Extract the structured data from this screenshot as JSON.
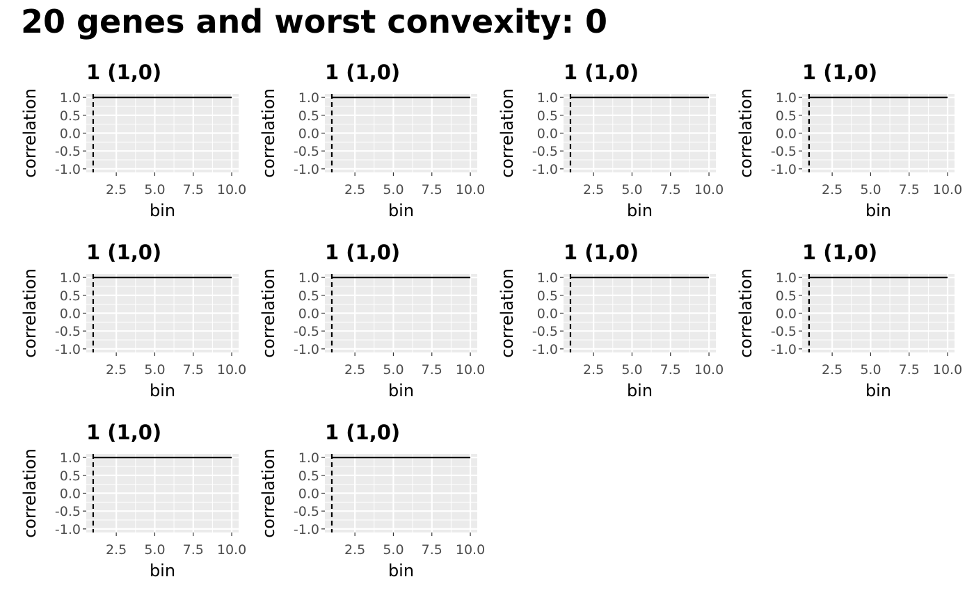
{
  "title": "20 genes and worst convexity: 0",
  "colors": {
    "panel_bg": "#ebebeb",
    "grid_line": "#ffffff",
    "line": "#000000",
    "tick_label": "#4d4d4d",
    "text": "#000000"
  },
  "chart_data": [
    {
      "type": "line",
      "title": "1 (1,0)",
      "xlabel": "bin",
      "ylabel": "correlation",
      "xlim": [
        0.55,
        10.45
      ],
      "ylim": [
        -1.1,
        1.1
      ],
      "xticks": [
        2.5,
        5.0,
        7.5,
        10.0
      ],
      "xtick_labels": [
        "2.5",
        "5.0",
        "7.5",
        "10.0"
      ],
      "yticks": [
        1.0,
        0.5,
        0.0,
        -0.5,
        -1.0
      ],
      "ytick_labels": [
        "1.0",
        "0.5",
        "0.0",
        "-0.5",
        "-1.0"
      ],
      "x": [
        1,
        2,
        3,
        4,
        5,
        6,
        7,
        8,
        9,
        10
      ],
      "y": [
        1,
        1,
        1,
        1,
        1,
        1,
        1,
        1,
        1,
        1
      ],
      "vline_dashed": 1,
      "grid": true
    },
    {
      "type": "line",
      "title": "1 (1,0)",
      "xlabel": "bin",
      "ylabel": "correlation",
      "xlim": [
        0.55,
        10.45
      ],
      "ylim": [
        -1.1,
        1.1
      ],
      "xticks": [
        2.5,
        5.0,
        7.5,
        10.0
      ],
      "xtick_labels": [
        "2.5",
        "5.0",
        "7.5",
        "10.0"
      ],
      "yticks": [
        1.0,
        0.5,
        0.0,
        -0.5,
        -1.0
      ],
      "ytick_labels": [
        "1.0",
        "0.5",
        "0.0",
        "-0.5",
        "-1.0"
      ],
      "x": [
        1,
        2,
        3,
        4,
        5,
        6,
        7,
        8,
        9,
        10
      ],
      "y": [
        1,
        1,
        1,
        1,
        1,
        1,
        1,
        1,
        1,
        1
      ],
      "vline_dashed": 1,
      "grid": true
    },
    {
      "type": "line",
      "title": "1 (1,0)",
      "xlabel": "bin",
      "ylabel": "correlation",
      "xlim": [
        0.55,
        10.45
      ],
      "ylim": [
        -1.1,
        1.1
      ],
      "xticks": [
        2.5,
        5.0,
        7.5,
        10.0
      ],
      "xtick_labels": [
        "2.5",
        "5.0",
        "7.5",
        "10.0"
      ],
      "yticks": [
        1.0,
        0.5,
        0.0,
        -0.5,
        -1.0
      ],
      "ytick_labels": [
        "1.0",
        "0.5",
        "0.0",
        "-0.5",
        "-1.0"
      ],
      "x": [
        1,
        2,
        3,
        4,
        5,
        6,
        7,
        8,
        9,
        10
      ],
      "y": [
        1,
        1,
        1,
        1,
        1,
        1,
        1,
        1,
        1,
        1
      ],
      "vline_dashed": 1,
      "grid": true
    },
    {
      "type": "line",
      "title": "1 (1,0)",
      "xlabel": "bin",
      "ylabel": "correlation",
      "xlim": [
        0.55,
        10.45
      ],
      "ylim": [
        -1.1,
        1.1
      ],
      "xticks": [
        2.5,
        5.0,
        7.5,
        10.0
      ],
      "xtick_labels": [
        "2.5",
        "5.0",
        "7.5",
        "10.0"
      ],
      "yticks": [
        1.0,
        0.5,
        0.0,
        -0.5,
        -1.0
      ],
      "ytick_labels": [
        "1.0",
        "0.5",
        "0.0",
        "-0.5",
        "-1.0"
      ],
      "x": [
        1,
        2,
        3,
        4,
        5,
        6,
        7,
        8,
        9,
        10
      ],
      "y": [
        1,
        1,
        1,
        1,
        1,
        1,
        1,
        1,
        1,
        1
      ],
      "vline_dashed": 1,
      "grid": true
    },
    {
      "type": "line",
      "title": "1 (1,0)",
      "xlabel": "bin",
      "ylabel": "correlation",
      "xlim": [
        0.55,
        10.45
      ],
      "ylim": [
        -1.1,
        1.1
      ],
      "xticks": [
        2.5,
        5.0,
        7.5,
        10.0
      ],
      "xtick_labels": [
        "2.5",
        "5.0",
        "7.5",
        "10.0"
      ],
      "yticks": [
        1.0,
        0.5,
        0.0,
        -0.5,
        -1.0
      ],
      "ytick_labels": [
        "1.0",
        "0.5",
        "0.0",
        "-0.5",
        "-1.0"
      ],
      "x": [
        1,
        2,
        3,
        4,
        5,
        6,
        7,
        8,
        9,
        10
      ],
      "y": [
        1,
        1,
        1,
        1,
        1,
        1,
        1,
        1,
        1,
        1
      ],
      "vline_dashed": 1,
      "grid": true
    },
    {
      "type": "line",
      "title": "1 (1,0)",
      "xlabel": "bin",
      "ylabel": "correlation",
      "xlim": [
        0.55,
        10.45
      ],
      "ylim": [
        -1.1,
        1.1
      ],
      "xticks": [
        2.5,
        5.0,
        7.5,
        10.0
      ],
      "xtick_labels": [
        "2.5",
        "5.0",
        "7.5",
        "10.0"
      ],
      "yticks": [
        1.0,
        0.5,
        0.0,
        -0.5,
        -1.0
      ],
      "ytick_labels": [
        "1.0",
        "0.5",
        "0.0",
        "-0.5",
        "-1.0"
      ],
      "x": [
        1,
        2,
        3,
        4,
        5,
        6,
        7,
        8,
        9,
        10
      ],
      "y": [
        1,
        1,
        1,
        1,
        1,
        1,
        1,
        1,
        1,
        1
      ],
      "vline_dashed": 1,
      "grid": true
    },
    {
      "type": "line",
      "title": "1 (1,0)",
      "xlabel": "bin",
      "ylabel": "correlation",
      "xlim": [
        0.55,
        10.45
      ],
      "ylim": [
        -1.1,
        1.1
      ],
      "xticks": [
        2.5,
        5.0,
        7.5,
        10.0
      ],
      "xtick_labels": [
        "2.5",
        "5.0",
        "7.5",
        "10.0"
      ],
      "yticks": [
        1.0,
        0.5,
        0.0,
        -0.5,
        -1.0
      ],
      "ytick_labels": [
        "1.0",
        "0.5",
        "0.0",
        "-0.5",
        "-1.0"
      ],
      "x": [
        1,
        2,
        3,
        4,
        5,
        6,
        7,
        8,
        9,
        10
      ],
      "y": [
        1,
        1,
        1,
        1,
        1,
        1,
        1,
        1,
        1,
        1
      ],
      "vline_dashed": 1,
      "grid": true
    },
    {
      "type": "line",
      "title": "1 (1,0)",
      "xlabel": "bin",
      "ylabel": "correlation",
      "xlim": [
        0.55,
        10.45
      ],
      "ylim": [
        -1.1,
        1.1
      ],
      "xticks": [
        2.5,
        5.0,
        7.5,
        10.0
      ],
      "xtick_labels": [
        "2.5",
        "5.0",
        "7.5",
        "10.0"
      ],
      "yticks": [
        1.0,
        0.5,
        0.0,
        -0.5,
        -1.0
      ],
      "ytick_labels": [
        "1.0",
        "0.5",
        "0.0",
        "-0.5",
        "-1.0"
      ],
      "x": [
        1,
        2,
        3,
        4,
        5,
        6,
        7,
        8,
        9,
        10
      ],
      "y": [
        1,
        1,
        1,
        1,
        1,
        1,
        1,
        1,
        1,
        1
      ],
      "vline_dashed": 1,
      "grid": true
    },
    {
      "type": "line",
      "title": "1 (1,0)",
      "xlabel": "bin",
      "ylabel": "correlation",
      "xlim": [
        0.55,
        10.45
      ],
      "ylim": [
        -1.1,
        1.1
      ],
      "xticks": [
        2.5,
        5.0,
        7.5,
        10.0
      ],
      "xtick_labels": [
        "2.5",
        "5.0",
        "7.5",
        "10.0"
      ],
      "yticks": [
        1.0,
        0.5,
        0.0,
        -0.5,
        -1.0
      ],
      "ytick_labels": [
        "1.0",
        "0.5",
        "0.0",
        "-0.5",
        "-1.0"
      ],
      "x": [
        1,
        2,
        3,
        4,
        5,
        6,
        7,
        8,
        9,
        10
      ],
      "y": [
        1,
        1,
        1,
        1,
        1,
        1,
        1,
        1,
        1,
        1
      ],
      "vline_dashed": 1,
      "grid": true
    },
    {
      "type": "line",
      "title": "1 (1,0)",
      "xlabel": "bin",
      "ylabel": "correlation",
      "xlim": [
        0.55,
        10.45
      ],
      "ylim": [
        -1.1,
        1.1
      ],
      "xticks": [
        2.5,
        5.0,
        7.5,
        10.0
      ],
      "xtick_labels": [
        "2.5",
        "5.0",
        "7.5",
        "10.0"
      ],
      "yticks": [
        1.0,
        0.5,
        0.0,
        -0.5,
        -1.0
      ],
      "ytick_labels": [
        "1.0",
        "0.5",
        "0.0",
        "-0.5",
        "-1.0"
      ],
      "x": [
        1,
        2,
        3,
        4,
        5,
        6,
        7,
        8,
        9,
        10
      ],
      "y": [
        1,
        1,
        1,
        1,
        1,
        1,
        1,
        1,
        1,
        1
      ],
      "vline_dashed": 1,
      "grid": true
    }
  ]
}
